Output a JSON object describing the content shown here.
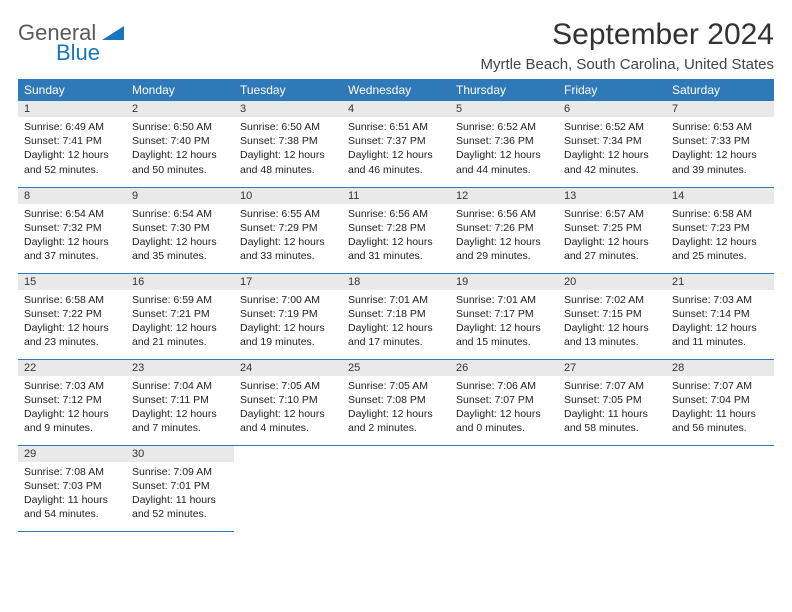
{
  "brand": {
    "top": "General",
    "bottom": "Blue",
    "text_color": "#5a5a5a",
    "accent_color": "#1976bd"
  },
  "title": {
    "month_year": "September 2024",
    "location": "Myrtle Beach, South Carolina, United States"
  },
  "colors": {
    "header_bg": "#2f79b9",
    "header_fg": "#ffffff",
    "daynum_bg": "#e9e9e9",
    "row_border": "#2f79b9"
  },
  "day_headers": [
    "Sunday",
    "Monday",
    "Tuesday",
    "Wednesday",
    "Thursday",
    "Friday",
    "Saturday"
  ],
  "weeks": [
    [
      {
        "n": "1",
        "sr": "Sunrise: 6:49 AM",
        "ss": "Sunset: 7:41 PM",
        "dl": "Daylight: 12 hours and 52 minutes."
      },
      {
        "n": "2",
        "sr": "Sunrise: 6:50 AM",
        "ss": "Sunset: 7:40 PM",
        "dl": "Daylight: 12 hours and 50 minutes."
      },
      {
        "n": "3",
        "sr": "Sunrise: 6:50 AM",
        "ss": "Sunset: 7:38 PM",
        "dl": "Daylight: 12 hours and 48 minutes."
      },
      {
        "n": "4",
        "sr": "Sunrise: 6:51 AM",
        "ss": "Sunset: 7:37 PM",
        "dl": "Daylight: 12 hours and 46 minutes."
      },
      {
        "n": "5",
        "sr": "Sunrise: 6:52 AM",
        "ss": "Sunset: 7:36 PM",
        "dl": "Daylight: 12 hours and 44 minutes."
      },
      {
        "n": "6",
        "sr": "Sunrise: 6:52 AM",
        "ss": "Sunset: 7:34 PM",
        "dl": "Daylight: 12 hours and 42 minutes."
      },
      {
        "n": "7",
        "sr": "Sunrise: 6:53 AM",
        "ss": "Sunset: 7:33 PM",
        "dl": "Daylight: 12 hours and 39 minutes."
      }
    ],
    [
      {
        "n": "8",
        "sr": "Sunrise: 6:54 AM",
        "ss": "Sunset: 7:32 PM",
        "dl": "Daylight: 12 hours and 37 minutes."
      },
      {
        "n": "9",
        "sr": "Sunrise: 6:54 AM",
        "ss": "Sunset: 7:30 PM",
        "dl": "Daylight: 12 hours and 35 minutes."
      },
      {
        "n": "10",
        "sr": "Sunrise: 6:55 AM",
        "ss": "Sunset: 7:29 PM",
        "dl": "Daylight: 12 hours and 33 minutes."
      },
      {
        "n": "11",
        "sr": "Sunrise: 6:56 AM",
        "ss": "Sunset: 7:28 PM",
        "dl": "Daylight: 12 hours and 31 minutes."
      },
      {
        "n": "12",
        "sr": "Sunrise: 6:56 AM",
        "ss": "Sunset: 7:26 PM",
        "dl": "Daylight: 12 hours and 29 minutes."
      },
      {
        "n": "13",
        "sr": "Sunrise: 6:57 AM",
        "ss": "Sunset: 7:25 PM",
        "dl": "Daylight: 12 hours and 27 minutes."
      },
      {
        "n": "14",
        "sr": "Sunrise: 6:58 AM",
        "ss": "Sunset: 7:23 PM",
        "dl": "Daylight: 12 hours and 25 minutes."
      }
    ],
    [
      {
        "n": "15",
        "sr": "Sunrise: 6:58 AM",
        "ss": "Sunset: 7:22 PM",
        "dl": "Daylight: 12 hours and 23 minutes."
      },
      {
        "n": "16",
        "sr": "Sunrise: 6:59 AM",
        "ss": "Sunset: 7:21 PM",
        "dl": "Daylight: 12 hours and 21 minutes."
      },
      {
        "n": "17",
        "sr": "Sunrise: 7:00 AM",
        "ss": "Sunset: 7:19 PM",
        "dl": "Daylight: 12 hours and 19 minutes."
      },
      {
        "n": "18",
        "sr": "Sunrise: 7:01 AM",
        "ss": "Sunset: 7:18 PM",
        "dl": "Daylight: 12 hours and 17 minutes."
      },
      {
        "n": "19",
        "sr": "Sunrise: 7:01 AM",
        "ss": "Sunset: 7:17 PM",
        "dl": "Daylight: 12 hours and 15 minutes."
      },
      {
        "n": "20",
        "sr": "Sunrise: 7:02 AM",
        "ss": "Sunset: 7:15 PM",
        "dl": "Daylight: 12 hours and 13 minutes."
      },
      {
        "n": "21",
        "sr": "Sunrise: 7:03 AM",
        "ss": "Sunset: 7:14 PM",
        "dl": "Daylight: 12 hours and 11 minutes."
      }
    ],
    [
      {
        "n": "22",
        "sr": "Sunrise: 7:03 AM",
        "ss": "Sunset: 7:12 PM",
        "dl": "Daylight: 12 hours and 9 minutes."
      },
      {
        "n": "23",
        "sr": "Sunrise: 7:04 AM",
        "ss": "Sunset: 7:11 PM",
        "dl": "Daylight: 12 hours and 7 minutes."
      },
      {
        "n": "24",
        "sr": "Sunrise: 7:05 AM",
        "ss": "Sunset: 7:10 PM",
        "dl": "Daylight: 12 hours and 4 minutes."
      },
      {
        "n": "25",
        "sr": "Sunrise: 7:05 AM",
        "ss": "Sunset: 7:08 PM",
        "dl": "Daylight: 12 hours and 2 minutes."
      },
      {
        "n": "26",
        "sr": "Sunrise: 7:06 AM",
        "ss": "Sunset: 7:07 PM",
        "dl": "Daylight: 12 hours and 0 minutes."
      },
      {
        "n": "27",
        "sr": "Sunrise: 7:07 AM",
        "ss": "Sunset: 7:05 PM",
        "dl": "Daylight: 11 hours and 58 minutes."
      },
      {
        "n": "28",
        "sr": "Sunrise: 7:07 AM",
        "ss": "Sunset: 7:04 PM",
        "dl": "Daylight: 11 hours and 56 minutes."
      }
    ],
    [
      {
        "n": "29",
        "sr": "Sunrise: 7:08 AM",
        "ss": "Sunset: 7:03 PM",
        "dl": "Daylight: 11 hours and 54 minutes."
      },
      {
        "n": "30",
        "sr": "Sunrise: 7:09 AM",
        "ss": "Sunset: 7:01 PM",
        "dl": "Daylight: 11 hours and 52 minutes."
      },
      null,
      null,
      null,
      null,
      null
    ]
  ]
}
